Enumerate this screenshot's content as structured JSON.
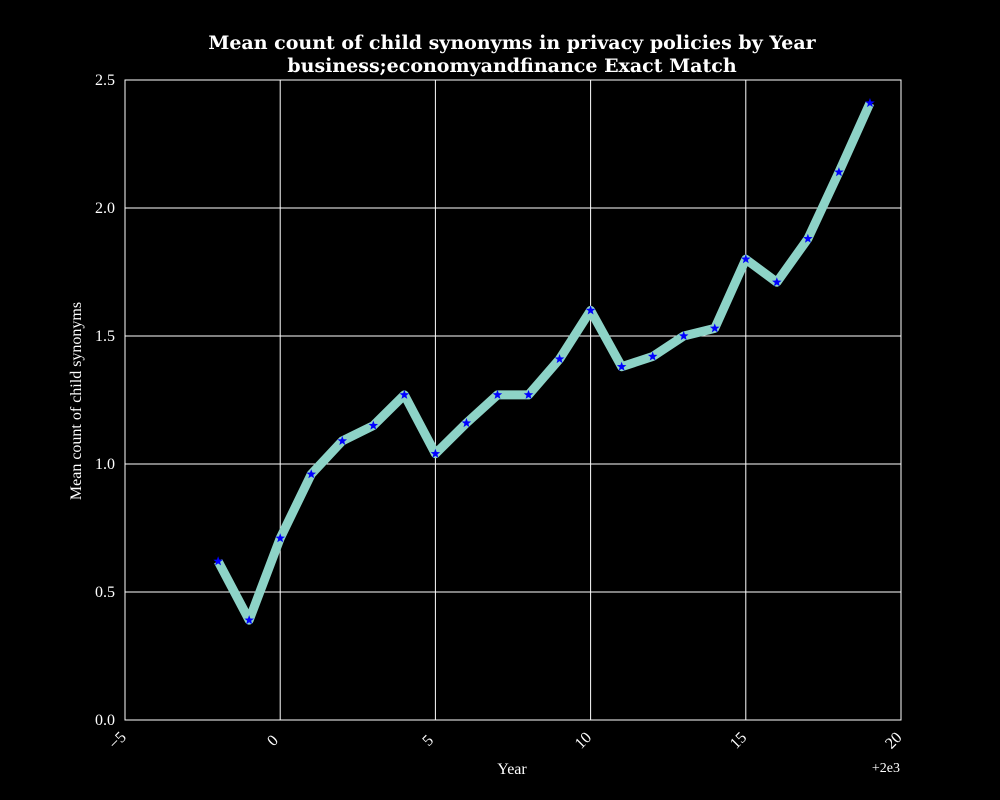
{
  "chart_data": {
    "type": "line",
    "title_lines": [
      "Mean count of child synonyms in privacy policies by Year",
      "business;economyandfinance Exact Match"
    ],
    "xlabel": "Year",
    "ylabel": "Mean count of child synonyms",
    "x_offset_label": "+2e3",
    "xlim": [
      -5,
      20
    ],
    "ylim": [
      0,
      2.5
    ],
    "x_ticks": [
      -5,
      0,
      5,
      10,
      15,
      20
    ],
    "x_tick_labels": [
      "−5",
      "0",
      "5",
      "10",
      "15",
      "20"
    ],
    "y_ticks": [
      0,
      0.5,
      1.0,
      1.5,
      2.0,
      2.5
    ],
    "y_tick_labels": [
      "0.0",
      "0.5",
      "1.0",
      "1.5",
      "2.0",
      "2.5"
    ],
    "grid": true,
    "colors": {
      "background": "#000000",
      "line": "#8dd3c7",
      "marker": "#0000ff",
      "grid": "#ffffff",
      "text": "#ffffff"
    },
    "series": [
      {
        "x": [
          -2,
          -1,
          0,
          1,
          2,
          3,
          4,
          5,
          6,
          7,
          8,
          9,
          10,
          11,
          12,
          13,
          14,
          15,
          16,
          17,
          18,
          19
        ],
        "y": [
          0.62,
          0.39,
          0.71,
          0.96,
          1.09,
          1.15,
          1.27,
          1.04,
          1.16,
          1.27,
          1.27,
          1.41,
          1.6,
          1.38,
          1.42,
          1.5,
          1.53,
          1.8,
          1.71,
          1.88,
          2.14,
          2.41
        ]
      }
    ]
  }
}
